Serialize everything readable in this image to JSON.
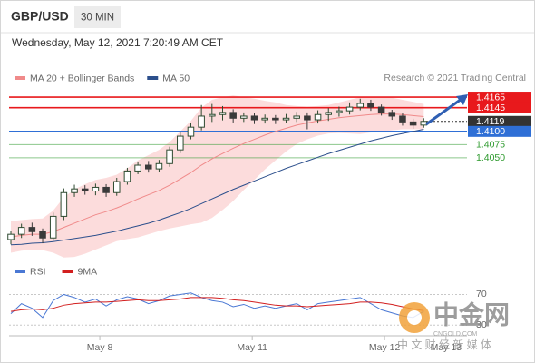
{
  "header": {
    "symbol": "GBP/USD",
    "timeframe": "30 MIN",
    "timestamp": "Wednesday, May 12, 2021 7:20:49 AM CET"
  },
  "watermark": {
    "brand": "中金网",
    "site": "CNGOLD.COM",
    "slogan": "中 文 财 经 新 媒 体"
  },
  "chart_data": [
    {
      "type": "candlestick",
      "credit": "Research © 2021 Trading Central",
      "x": [
        0,
        1,
        2,
        3,
        4,
        5,
        6,
        7,
        8,
        9,
        10,
        11,
        12,
        13,
        14,
        15,
        16,
        17,
        18,
        19,
        20,
        21,
        22,
        23,
        24,
        25,
        26,
        27,
        28,
        29,
        30,
        31,
        32,
        33,
        34,
        35,
        36,
        37,
        38,
        39
      ],
      "open": [
        1.3895,
        1.3905,
        1.3918,
        1.391,
        1.3898,
        1.3939,
        1.3984,
        1.3991,
        1.3987,
        1.3994,
        1.3984,
        1.4005,
        1.4025,
        1.4036,
        1.4029,
        1.4039,
        1.4065,
        1.4091,
        1.4108,
        1.4129,
        1.4132,
        1.4136,
        1.4125,
        1.4129,
        1.4122,
        1.4125,
        1.4122,
        1.4125,
        1.4129,
        1.4122,
        1.4132,
        1.4136,
        1.4139,
        1.4146,
        1.4153,
        1.4146,
        1.4136,
        1.4129,
        1.4118,
        1.4112
      ],
      "high": [
        1.3912,
        1.3925,
        1.3927,
        1.3916,
        1.3946,
        1.3992,
        1.3999,
        1.3998,
        1.4001,
        1.4,
        1.4012,
        1.4031,
        1.4043,
        1.4044,
        1.4046,
        1.4071,
        1.4098,
        1.4116,
        1.415,
        1.4152,
        1.4148,
        1.4142,
        1.4136,
        1.4135,
        1.4132,
        1.4131,
        1.4133,
        1.4137,
        1.4136,
        1.414,
        1.4144,
        1.4147,
        1.4155,
        1.4162,
        1.416,
        1.4151,
        1.4141,
        1.4134,
        1.4124,
        1.4125
      ],
      "low": [
        1.3886,
        1.3898,
        1.3902,
        1.3888,
        1.3893,
        1.3932,
        1.3976,
        1.398,
        1.3979,
        1.3976,
        1.3978,
        1.3999,
        1.4019,
        1.4022,
        1.4023,
        1.4033,
        1.4059,
        1.4085,
        1.4102,
        1.4118,
        1.4121,
        1.4117,
        1.4118,
        1.4114,
        1.4115,
        1.4114,
        1.4116,
        1.4118,
        1.4104,
        1.4115,
        1.412,
        1.4128,
        1.4132,
        1.414,
        1.4139,
        1.413,
        1.4122,
        1.4111,
        1.4105,
        1.4107
      ],
      "close": [
        1.3905,
        1.3918,
        1.391,
        1.3898,
        1.3939,
        1.3984,
        1.3991,
        1.3987,
        1.3994,
        1.3984,
        1.4005,
        1.4025,
        1.4036,
        1.4029,
        1.4039,
        1.4065,
        1.4091,
        1.4108,
        1.4129,
        1.4132,
        1.4136,
        1.4125,
        1.4129,
        1.4122,
        1.4125,
        1.4122,
        1.4125,
        1.4129,
        1.4122,
        1.4132,
        1.4136,
        1.4139,
        1.4146,
        1.4153,
        1.4146,
        1.4136,
        1.4129,
        1.4118,
        1.4112,
        1.4119
      ],
      "up_color": "#2e4a30",
      "down_color": "#3a3a3a",
      "overlays": [
        {
          "name": "MA 20 + Bollinger Bands",
          "color": "#f08a8a",
          "band_color": "#fbd3d3",
          "values": [
            1.39,
            1.3903,
            1.3905,
            1.3905,
            1.391,
            1.3918,
            1.3926,
            1.3934,
            1.3942,
            1.3948,
            1.3955,
            1.3963,
            1.3972,
            1.398,
            1.3988,
            1.3998,
            1.401,
            1.4022,
            1.4036,
            1.4048,
            1.4058,
            1.4068,
            1.4077,
            1.4085,
            1.4093,
            1.41,
            1.4106,
            1.4112,
            1.4116,
            1.412,
            1.4123,
            1.4126,
            1.4128,
            1.413,
            1.4132,
            1.4133,
            1.4133,
            1.4132,
            1.413,
            1.4128
          ],
          "upper": [
            1.393,
            1.3932,
            1.3934,
            1.3935,
            1.395,
            1.3975,
            1.399,
            1.4,
            1.4008,
            1.4012,
            1.4018,
            1.403,
            1.4045,
            1.4055,
            1.4065,
            1.408,
            1.41,
            1.412,
            1.4145,
            1.416,
            1.4165,
            1.4168,
            1.4165,
            1.4162,
            1.4158,
            1.4155,
            1.415,
            1.4148,
            1.4147,
            1.4148,
            1.415,
            1.4155,
            1.416,
            1.4165,
            1.4166,
            1.4166,
            1.4164,
            1.416,
            1.4156,
            1.4152
          ],
          "lower": [
            1.387,
            1.3874,
            1.3876,
            1.3875,
            1.387,
            1.3861,
            1.3862,
            1.3868,
            1.3876,
            1.3884,
            1.3892,
            1.3896,
            1.3899,
            1.3905,
            1.3911,
            1.3916,
            1.392,
            1.3924,
            1.3927,
            1.3936,
            1.3951,
            1.3968,
            1.3989,
            1.4008,
            1.4028,
            1.4045,
            1.4062,
            1.4076,
            1.4085,
            1.4092,
            1.4096,
            1.4097,
            1.4096,
            1.4095,
            1.4098,
            1.41,
            1.4102,
            1.4104,
            1.4104,
            1.4104
          ]
        },
        {
          "name": "MA 50",
          "color": "#2c4f8c",
          "values": [
            1.3885,
            1.3886,
            1.3888,
            1.3889,
            1.3891,
            1.3894,
            1.3897,
            1.39,
            1.3903,
            1.3907,
            1.3911,
            1.3916,
            1.3921,
            1.3926,
            1.3932,
            1.3939,
            1.3946,
            1.3954,
            1.3963,
            1.3972,
            1.3981,
            1.399,
            1.3998,
            1.4006,
            1.4014,
            1.4022,
            1.403,
            1.4037,
            1.4044,
            1.4051,
            1.4058,
            1.4064,
            1.407,
            1.4076,
            1.4082,
            1.4087,
            1.4092,
            1.4096,
            1.41,
            1.4104
          ]
        }
      ],
      "levels": [
        {
          "value": 1.4165,
          "color": "#e8191c",
          "boxed": true
        },
        {
          "value": 1.4145,
          "color": "#e8191c",
          "boxed": true
        },
        {
          "value": 1.4119,
          "color": "#333333",
          "boxed": true,
          "dotted": true
        },
        {
          "value": 1.41,
          "label": "1.4100",
          "color": "#2f6fd6",
          "boxed": true
        },
        {
          "value": 1.4075,
          "color": "#2e9a2e",
          "boxed": false
        },
        {
          "value": 1.405,
          "label": "1.4050",
          "color": "#2e9a2e",
          "boxed": false
        }
      ],
      "xlim": [
        0,
        43
      ],
      "ylim": [
        1.3864,
        1.4184
      ]
    },
    {
      "type": "line",
      "series": [
        {
          "name": "RSI",
          "color": "#4a78d4",
          "values": [
            45,
            58,
            52,
            40,
            62,
            70,
            66,
            60,
            64,
            55,
            63,
            67,
            64,
            58,
            62,
            68,
            70,
            72,
            66,
            62,
            60,
            54,
            57,
            52,
            55,
            52,
            55,
            58,
            50,
            58,
            60,
            62,
            64,
            66,
            58,
            50,
            46,
            42,
            40,
            48
          ]
        },
        {
          "name": "9MA",
          "color": "#d21f1f",
          "values": [
            48,
            50,
            51,
            50,
            52,
            56,
            58,
            59,
            60,
            60,
            61,
            62,
            63,
            62,
            62,
            63,
            64,
            66,
            66,
            66,
            65,
            63,
            62,
            60,
            58,
            56,
            55,
            55,
            54,
            55,
            56,
            57,
            58,
            60,
            60,
            59,
            57,
            54,
            51,
            49
          ]
        }
      ],
      "xlim": [
        0,
        43
      ],
      "ylim": [
        15,
        80
      ],
      "yticks": [
        30,
        70
      ],
      "xticks": [
        {
          "value": 8.4,
          "label": "May 8"
        },
        {
          "value": 22.8,
          "label": "May 11"
        },
        {
          "value": 35.3,
          "label": "May 12"
        },
        {
          "value": 41.1,
          "label": "May 13"
        }
      ]
    }
  ]
}
